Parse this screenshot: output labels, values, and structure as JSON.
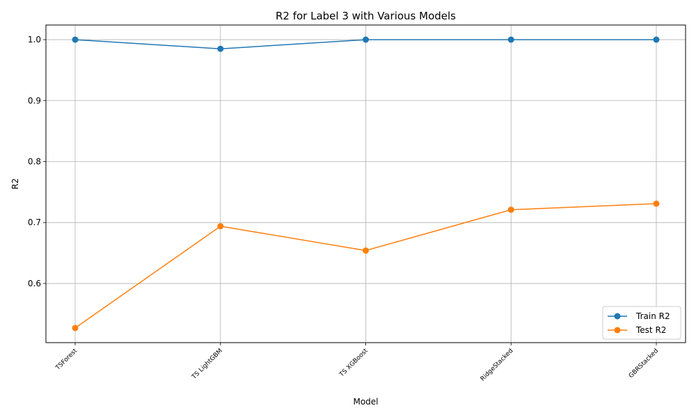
{
  "chart_data": {
    "type": "line",
    "title": "R2 for Label 3 with Various Models",
    "xlabel": "Model",
    "ylabel": "R2",
    "categories": [
      "TSForest",
      "TS LightGBM",
      "TS XGBoost",
      "RidgeStacked",
      "GBRStacked"
    ],
    "series": [
      {
        "name": "Train R2",
        "color": "#1f77b4",
        "values": [
          1.0,
          0.985,
          1.0,
          1.0,
          1.0
        ]
      },
      {
        "name": "Test R2",
        "color": "#ff7f0e",
        "values": [
          0.527,
          0.694,
          0.654,
          0.721,
          0.731
        ]
      }
    ],
    "ylim": [
      0.503,
      1.024
    ],
    "yticks": [
      "0.6",
      "0.7",
      "0.8",
      "0.9",
      "1.0"
    ],
    "grid": true,
    "legend_position": "bottom-right",
    "marker": "circle"
  }
}
